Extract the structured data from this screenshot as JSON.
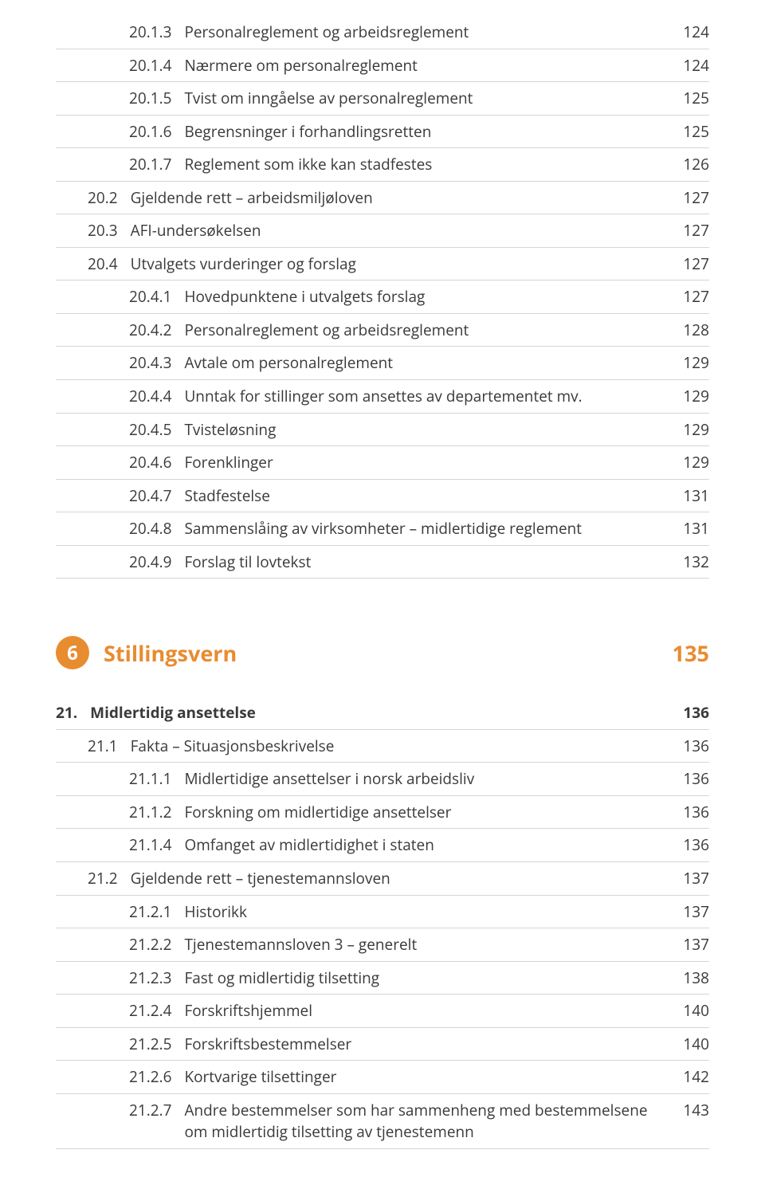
{
  "colors": {
    "accent": "#e88c30",
    "text": "#3a3a3a",
    "rule": "#d5d5d5",
    "background": "#ffffff"
  },
  "typography": {
    "body_fontsize": 19,
    "part_fontsize": 27,
    "font_family": "Open Sans"
  },
  "part": {
    "number": "6",
    "title": "Stillingsvern",
    "page": "135"
  },
  "rows_top": [
    {
      "level": 3,
      "num": "20.1.3",
      "title": "Personalreglement og arbeidsreglement",
      "page": "124"
    },
    {
      "level": 3,
      "num": "20.1.4",
      "title": "Nærmere om personalreglement",
      "page": "124"
    },
    {
      "level": 3,
      "num": "20.1.5",
      "title": "Tvist om inngåelse av personalreglement",
      "page": "125"
    },
    {
      "level": 3,
      "num": "20.1.6",
      "title": "Begrensninger i forhandlingsretten",
      "page": "125"
    },
    {
      "level": 3,
      "num": "20.1.7",
      "title": "Reglement som ikke kan stadfestes",
      "page": "126"
    },
    {
      "level": 2,
      "num": "20.2",
      "title": "Gjeldende rett – arbeidsmiljøloven",
      "page": "127"
    },
    {
      "level": 2,
      "num": "20.3",
      "title": "AFI-undersøkelsen",
      "page": "127"
    },
    {
      "level": 2,
      "num": "20.4",
      "title": "Utvalgets vurderinger og forslag",
      "page": "127"
    },
    {
      "level": 3,
      "num": "20.4.1",
      "title": "Hovedpunktene i utvalgets forslag",
      "page": "127"
    },
    {
      "level": 3,
      "num": "20.4.2",
      "title": "Personalreglement og arbeidsreglement",
      "page": "128"
    },
    {
      "level": 3,
      "num": "20.4.3",
      "title": "Avtale om personalreglement",
      "page": "129"
    },
    {
      "level": 3,
      "num": "20.4.4",
      "title": "Unntak for stillinger som ansettes av departementet mv.",
      "page": "129"
    },
    {
      "level": 3,
      "num": "20.4.5",
      "title": "Tvisteløsning",
      "page": "129"
    },
    {
      "level": 3,
      "num": "20.4.6",
      "title": "Forenklinger",
      "page": "129"
    },
    {
      "level": 3,
      "num": "20.4.7",
      "title": "Stadfestelse",
      "page": "131"
    },
    {
      "level": 3,
      "num": "20.4.8",
      "title": "Sammenslåing av virksomheter – midlertidige reglement",
      "page": "131"
    },
    {
      "level": 3,
      "num": "20.4.9",
      "title": "Forslag til lovtekst",
      "page": "132"
    }
  ],
  "rows_bottom": [
    {
      "level": 1,
      "num": "21.",
      "title": "Midlertidig ansettelse",
      "page": "136"
    },
    {
      "level": 2,
      "num": "21.1",
      "title": "Fakta – Situasjonsbeskrivelse",
      "page": "136"
    },
    {
      "level": 3,
      "num": "21.1.1",
      "title": "Midlertidige ansettelser i norsk arbeidsliv",
      "page": "136"
    },
    {
      "level": 3,
      "num": "21.1.2",
      "title": "Forskning om midlertidige ansettelser",
      "page": "136"
    },
    {
      "level": 3,
      "num": "21.1.4",
      "title": "Omfanget av midlertidighet i staten",
      "page": "136"
    },
    {
      "level": 2,
      "num": "21.2",
      "title": "Gjeldende rett – tjenestemannsloven",
      "page": "137"
    },
    {
      "level": 3,
      "num": "21.2.1",
      "title": "Historikk",
      "page": "137"
    },
    {
      "level": 3,
      "num": "21.2.2",
      "title": "Tjenestemannsloven 3 – generelt",
      "page": "137"
    },
    {
      "level": 3,
      "num": "21.2.3",
      "title": "Fast og midlertidig tilsetting",
      "page": "138"
    },
    {
      "level": 3,
      "num": "21.2.4",
      "title": "Forskriftshjemmel",
      "page": "140"
    },
    {
      "level": 3,
      "num": "21.2.5",
      "title": "Forskriftsbestemmelser",
      "page": "140"
    },
    {
      "level": 3,
      "num": "21.2.6",
      "title": "Kortvarige tilsettinger",
      "page": "142"
    },
    {
      "level": 3,
      "num": "21.2.7",
      "title": "Andre bestemmelser som har sammenheng med bestemmelsene om midlertidig tilsetting av tjenestemenn",
      "page": "143"
    }
  ]
}
